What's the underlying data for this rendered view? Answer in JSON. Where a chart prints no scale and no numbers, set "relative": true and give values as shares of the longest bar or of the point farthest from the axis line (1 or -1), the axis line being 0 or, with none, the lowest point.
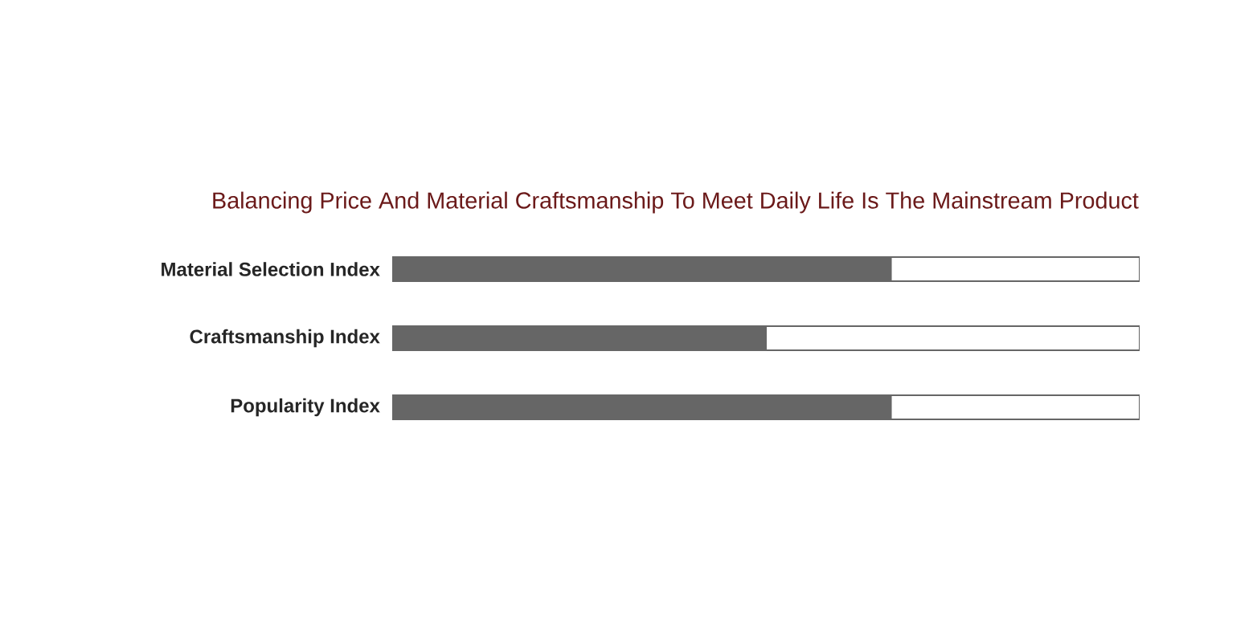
{
  "chart_data": {
    "type": "bar",
    "orientation": "horizontal",
    "stacked": true,
    "relative": true,
    "title": "Balancing Price And Material Craftsmanship To Meet Daily Life Is The Mainstream Product",
    "categories": [
      "Material Selection Index",
      "Craftsmanship Index",
      "Popularity Index"
    ],
    "series": [
      {
        "color": "#666666",
        "values": [
          0.667,
          0.5,
          0.667
        ]
      },
      {
        "color": "#ffffff",
        "values": [
          0.333,
          0.5,
          0.333
        ]
      }
    ]
  }
}
